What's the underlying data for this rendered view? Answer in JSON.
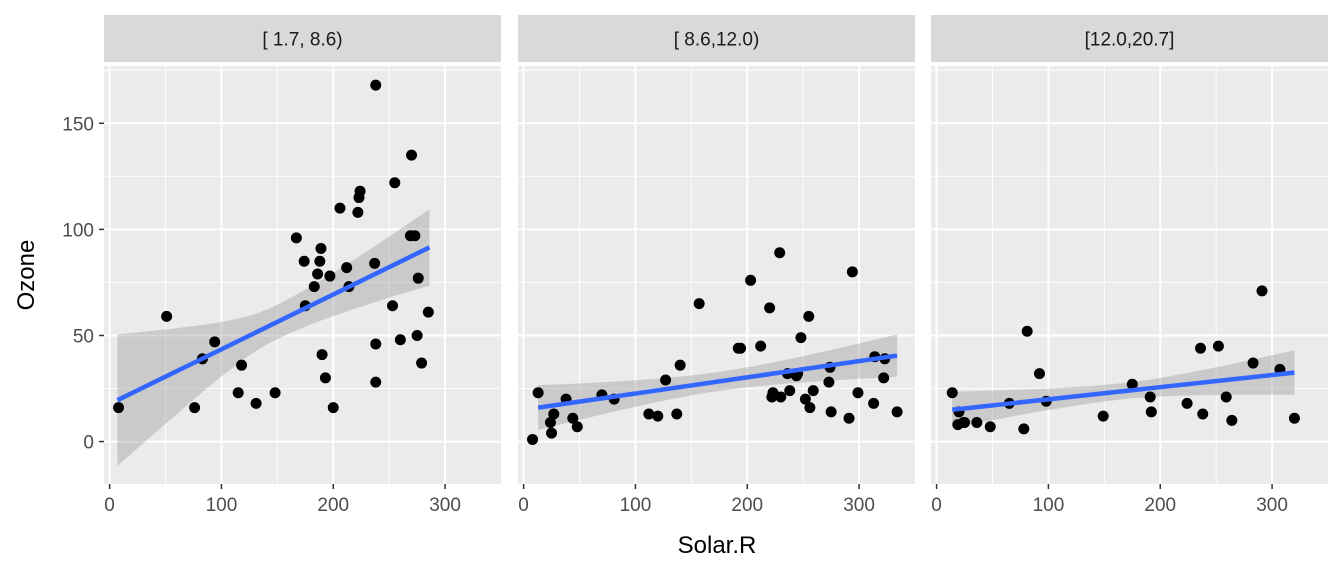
{
  "chart_data": {
    "type": "scatter",
    "xlabel": "Solar.R",
    "ylabel": "Ozone",
    "xlim": [
      -5,
      350
    ],
    "ylim": [
      -20,
      177
    ],
    "x_ticks": [
      0,
      100,
      200,
      300
    ],
    "y_ticks": [
      0,
      50,
      100,
      150
    ],
    "grid": true,
    "smoother": "linear fit with confidence band",
    "colors": {
      "panel_bg": "#ebebeb",
      "grid_major": "#ffffff",
      "strip_bg": "#d9d9d9",
      "points": "#000000",
      "fit_line": "#3366ff",
      "band": "#999999"
    },
    "panels": [
      {
        "strip": "[ 1.7, 8.6)",
        "fit": {
          "x": [
            7,
            286
          ],
          "y": [
            19.5,
            91.5
          ],
          "band_low": [
            -11,
            73
          ],
          "band_high": [
            51,
            109
          ]
        },
        "points": [
          [
            8,
            16
          ],
          [
            51,
            59
          ],
          [
            76,
            16
          ],
          [
            83,
            39
          ],
          [
            94,
            47
          ],
          [
            115,
            23
          ],
          [
            118,
            36
          ],
          [
            131,
            18
          ],
          [
            148,
            23
          ],
          [
            167,
            96
          ],
          [
            174,
            85
          ],
          [
            175,
            64
          ],
          [
            183,
            73
          ],
          [
            186,
            79
          ],
          [
            188,
            85
          ],
          [
            189,
            91
          ],
          [
            190,
            41
          ],
          [
            193,
            30
          ],
          [
            197,
            78
          ],
          [
            200,
            16
          ],
          [
            206,
            110
          ],
          [
            212,
            82
          ],
          [
            214,
            73
          ],
          [
            222,
            108
          ],
          [
            223,
            115
          ],
          [
            224,
            118
          ],
          [
            237,
            84
          ],
          [
            238,
            46
          ],
          [
            238,
            28
          ],
          [
            238,
            168
          ],
          [
            253,
            64
          ],
          [
            255,
            122
          ],
          [
            260,
            48
          ],
          [
            269,
            97
          ],
          [
            270,
            135
          ],
          [
            273,
            97
          ],
          [
            275,
            50
          ],
          [
            276,
            77
          ],
          [
            279,
            37
          ],
          [
            285,
            61
          ]
        ]
      },
      {
        "strip": "[ 8.6,12.0)",
        "fit": {
          "x": [
            13,
            334
          ],
          "y": [
            16,
            40.5
          ],
          "band_low": [
            7,
            31
          ],
          "band_high": [
            28,
            51
          ]
        },
        "points": [
          [
            8,
            1
          ],
          [
            13,
            23
          ],
          [
            24,
            9
          ],
          [
            25,
            4
          ],
          [
            27,
            13
          ],
          [
            38,
            20
          ],
          [
            44,
            11
          ],
          [
            48,
            7
          ],
          [
            70,
            22
          ],
          [
            81,
            20
          ],
          [
            112,
            13
          ],
          [
            120,
            12
          ],
          [
            127,
            29
          ],
          [
            137,
            13
          ],
          [
            140,
            36
          ],
          [
            157,
            65
          ],
          [
            192,
            44
          ],
          [
            194,
            44
          ],
          [
            203,
            76
          ],
          [
            212,
            45
          ],
          [
            220,
            63
          ],
          [
            222,
            21
          ],
          [
            223,
            23
          ],
          [
            229,
            89
          ],
          [
            230,
            21
          ],
          [
            236,
            32
          ],
          [
            238,
            24
          ],
          [
            244,
            31
          ],
          [
            245,
            32
          ],
          [
            248,
            49
          ],
          [
            252,
            20
          ],
          [
            255,
            59
          ],
          [
            256,
            16
          ],
          [
            259,
            24
          ],
          [
            273,
            28
          ],
          [
            274,
            35
          ],
          [
            275,
            14
          ],
          [
            291,
            11
          ],
          [
            294,
            80
          ],
          [
            299,
            23
          ],
          [
            313,
            18
          ],
          [
            314,
            40
          ],
          [
            322,
            30
          ],
          [
            323,
            39
          ],
          [
            334,
            14
          ]
        ]
      },
      {
        "strip": "[12.0,20.7]",
        "fit": {
          "x": [
            14,
            320
          ],
          "y": [
            15,
            32.5
          ],
          "band_low": [
            7,
            22
          ],
          "band_high": [
            24,
            43
          ]
        },
        "points": [
          [
            14,
            23
          ],
          [
            19,
            8
          ],
          [
            20,
            14
          ],
          [
            24,
            9
          ],
          [
            25,
            9
          ],
          [
            36,
            9
          ],
          [
            48,
            7
          ],
          [
            65,
            18
          ],
          [
            78,
            6
          ],
          [
            81,
            52
          ],
          [
            92,
            32
          ],
          [
            98,
            19
          ],
          [
            149,
            12
          ],
          [
            175,
            27
          ],
          [
            191,
            21
          ],
          [
            192,
            14
          ],
          [
            224,
            18
          ],
          [
            236,
            44
          ],
          [
            238,
            13
          ],
          [
            252,
            45
          ],
          [
            259,
            21
          ],
          [
            264,
            10
          ],
          [
            283,
            37
          ],
          [
            291,
            71
          ],
          [
            307,
            34
          ],
          [
            320,
            11
          ]
        ]
      }
    ]
  }
}
